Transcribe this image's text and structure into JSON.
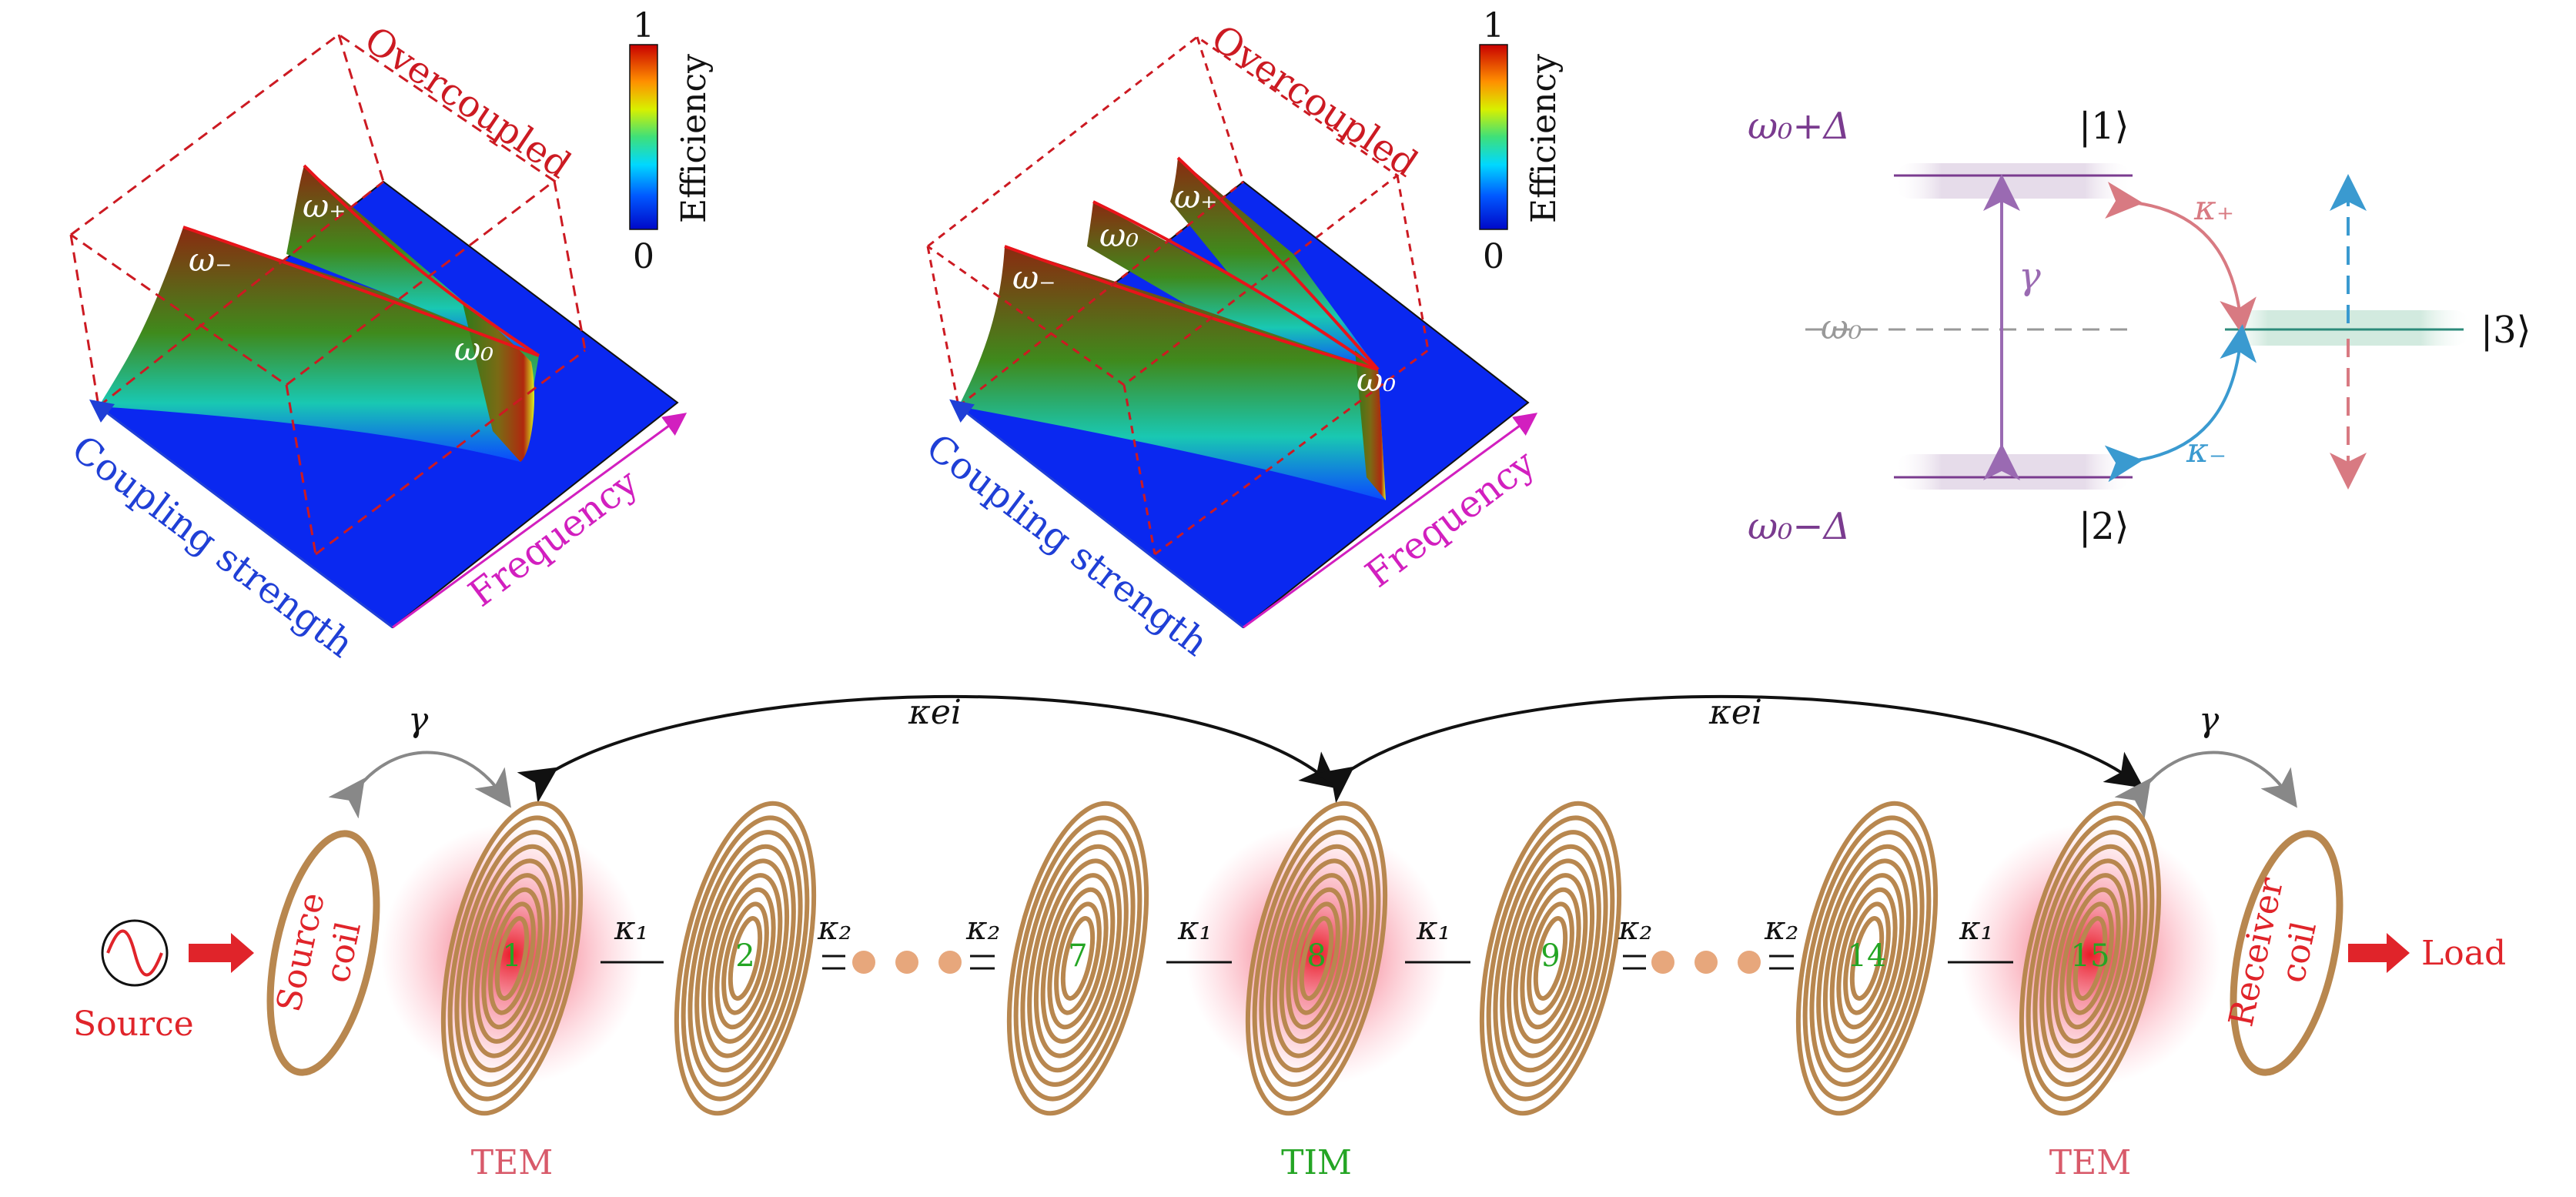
{
  "panel_a": {
    "overcoupled": "Overcoupled",
    "coupling_axis": "Coupling strength",
    "frequency_axis": "Frequency",
    "ridge_minus": "ω₋",
    "ridge_plus": "ω₊",
    "ridge_zero": "ω₀",
    "colorbar": {
      "max": "1",
      "min": "0",
      "label": "Efficiency"
    }
  },
  "panel_b": {
    "overcoupled": "Overcoupled",
    "coupling_axis": "Coupling strength",
    "frequency_axis": "Frequency",
    "ridge_minus": "ω₋",
    "ridge_zero_mid": "ω₀",
    "ridge_plus": "ω₊",
    "ridge_zero": "ω₀",
    "colorbar": {
      "max": "1",
      "min": "0",
      "label": "Efficiency"
    }
  },
  "levels": {
    "upper_energy": "ω₀+Δ",
    "lower_energy": "ω₀−Δ",
    "mid_energy": "ω₀",
    "state_1": "|1⟩",
    "state_2": "|2⟩",
    "state_3": "|3⟩",
    "gamma": "γ",
    "kappa_plus": "κ₊",
    "kappa_minus": "κ₋"
  },
  "chain": {
    "source_label": "Source",
    "load_label": "Load",
    "source_coil": [
      "Source",
      "coil"
    ],
    "receiver_coil": [
      "Receiver",
      "coil"
    ],
    "kappa_ei": "κei",
    "gamma": "γ",
    "kappa_1": "κ₁",
    "kappa_2": "κ₂",
    "coil_numbers": [
      "1",
      "2",
      "7",
      "8",
      "9",
      "14",
      "15"
    ],
    "tem_label": "TEM",
    "tim_label": "TIM"
  },
  "colors": {
    "red": "#e0242a",
    "blue": "#1f3fd6",
    "magenta": "#d21fbf",
    "purple": "#7a3b8f",
    "coil": "#b8874f",
    "green": "#24a524"
  }
}
